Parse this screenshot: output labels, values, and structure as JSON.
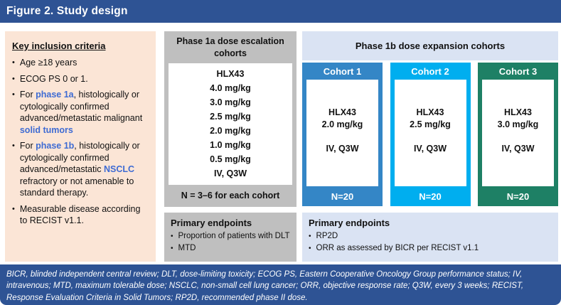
{
  "header": {
    "title": "Figure 2. Study design"
  },
  "colors": {
    "navy": "#2E5394",
    "peach": "#FBE5D6",
    "gray": "#BFBFBF",
    "lightblue": "#DAE3F3",
    "accent_text": "#3E6BD3",
    "cohort1": "#3486C6",
    "cohort2": "#00AEEF",
    "cohort3": "#1E8065"
  },
  "inclusion": {
    "title": "Key inclusion criteria",
    "bullets": [
      [
        {
          "t": "Age ≥18 years"
        }
      ],
      [
        {
          "t": "ECOG PS 0 or 1."
        }
      ],
      [
        {
          "t": "For "
        },
        {
          "t": "phase 1a",
          "accent": true
        },
        {
          "t": ", histologically or cytologically confirmed advanced/metastatic malignant "
        },
        {
          "t": "solid tumors",
          "accent": true
        }
      ],
      [
        {
          "t": "For "
        },
        {
          "t": "phase 1b",
          "accent": true
        },
        {
          "t": ", histologically or cytologically confirmed advanced/metastatic "
        },
        {
          "t": "NSCLC",
          "accent": true
        },
        {
          "t": " refractory or not amenable to standard therapy."
        }
      ],
      [
        {
          "t": "Measurable disease according to RECIST v1.1."
        }
      ]
    ]
  },
  "phase1a": {
    "title": "Phase 1a dose escalation cohorts",
    "drug": "HLX43",
    "doses": [
      "4.0 mg/kg",
      "3.0 mg/kg",
      "2.5 mg/kg",
      "2.0 mg/kg",
      "1.0 mg/kg",
      "0.5 mg/kg"
    ],
    "route": "IV, Q3W",
    "cohort_size": "N = 3–6 for each cohort",
    "endpoints": {
      "title": "Primary endpoints",
      "bullets": [
        "Proportion of patients with DLT",
        "MTD"
      ]
    }
  },
  "phase1b": {
    "title": "Phase 1b dose expansion cohorts",
    "cohorts": [
      {
        "label": "Cohort 1",
        "drug": "HLX43",
        "dose": "2.0 mg/kg",
        "route": "IV, Q3W",
        "n": "N=20",
        "color": "#3486C6"
      },
      {
        "label": "Cohort 2",
        "drug": "HLX43",
        "dose": "2.5 mg/kg",
        "route": "IV, Q3W",
        "n": "N=20",
        "color": "#00AEEF"
      },
      {
        "label": "Cohort 3",
        "drug": "HLX43",
        "dose": "3.0 mg/kg",
        "route": "IV, Q3W",
        "n": "N=20",
        "color": "#1E8065"
      }
    ],
    "endpoints": {
      "title": "Primary endpoints",
      "bullets": [
        "RP2D",
        "ORR as assessed by BICR per RECIST v1.1"
      ]
    }
  },
  "footnote": "BICR, blinded independent central review; DLT, dose-limiting toxicity; ECOG PS, Eastern Cooperative Oncology Group performance status; IV, intravenous; MTD, maximum tolerable dose; NSCLC, non-small cell lung cancer; ORR, objective response rate; Q3W, every 3 weeks; RECIST, Response Evaluation Criteria in Solid Tumors; RP2D, recommended phase II dose.",
  "bullet_glyph": "•"
}
